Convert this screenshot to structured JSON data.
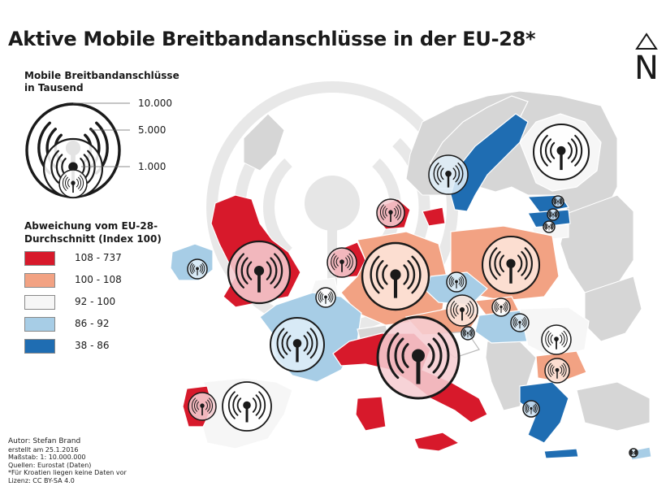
{
  "title": "Aktive Mobile Breitbandanschlüsse in der EU-28*",
  "north_label": "N",
  "size_legend": {
    "title_line1": "Mobile Breitbandanschlüsse",
    "title_line2": "in Tausend",
    "labels": [
      "10.000",
      "5.000",
      "1.000"
    ],
    "values": [
      10000,
      5000,
      1000
    ]
  },
  "class_legend": {
    "title_line1": "Abweichung vom EU-28-",
    "title_line2": "Durchschnitt (Index 100)",
    "classes": [
      {
        "label": "108 - 737",
        "color": "#d7192b"
      },
      {
        "label": "100 - 108",
        "color": "#f2a283"
      },
      {
        "label": "92 - 100",
        "color": "#f6f6f6"
      },
      {
        "label": "86 - 92",
        "color": "#a7cde6"
      },
      {
        "label": "38 - 86",
        "color": "#1f6db2"
      }
    ]
  },
  "colors": {
    "outside_land": "#d6d6d6",
    "symbol_ring": "#1a1a1a",
    "watermark": "#e6e6e6",
    "symbol_fill": "#ffffff"
  },
  "icon_name": "wifi-signal-icon",
  "footer": {
    "author": "Autor: Stefan Brand",
    "created": "erstellt am 25.1.2016",
    "scale": "Maßstab: 1: 10.000.000",
    "sources": "Quellen: Eurostat (Daten)",
    "note": "*Für Kroatien liegen keine Daten vor",
    "license": "Lizenz: CC BY-SA 4.0"
  }
}
